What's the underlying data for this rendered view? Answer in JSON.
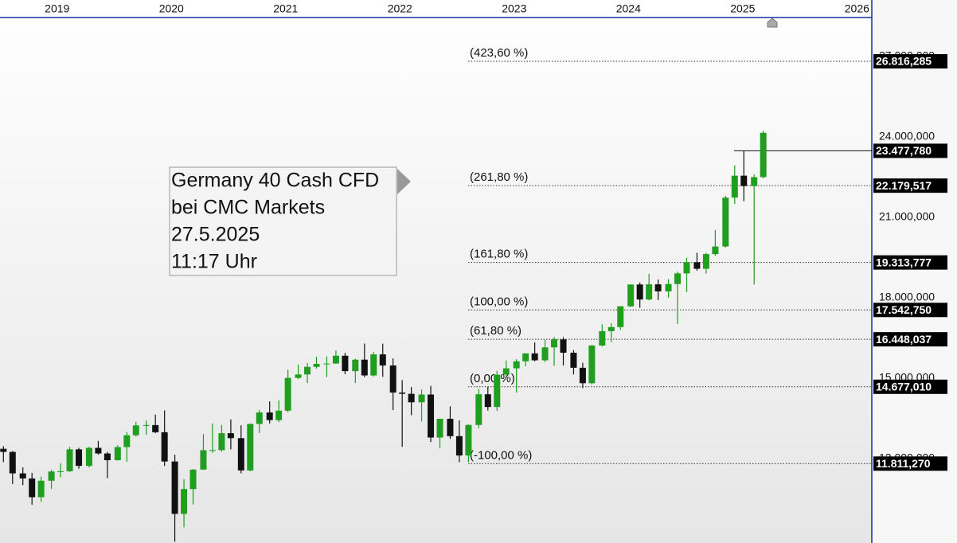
{
  "chart_data": {
    "type": "candlestick",
    "x": [
      2018.53,
      2018.61,
      2018.7,
      2018.78,
      2018.86,
      2018.95,
      2019.03,
      2019.11,
      2019.19,
      2019.28,
      2019.36,
      2019.44,
      2019.53,
      2019.61,
      2019.69,
      2019.78,
      2019.86,
      2019.94,
      2020.03,
      2020.11,
      2020.19,
      2020.28,
      2020.36,
      2020.44,
      2020.52,
      2020.61,
      2020.69,
      2020.77,
      2020.86,
      2020.94,
      2021.02,
      2021.11,
      2021.19,
      2021.27,
      2021.36,
      2021.44,
      2021.52,
      2021.61,
      2021.69,
      2021.77,
      2021.85,
      2021.94,
      2022.02,
      2022.1,
      2022.19,
      2022.27,
      2022.35,
      2022.44,
      2022.52,
      2022.6,
      2022.69,
      2022.77,
      2022.85,
      2022.93,
      2023.02,
      2023.1,
      2023.18,
      2023.27,
      2023.35,
      2023.43,
      2023.52,
      2023.6,
      2023.68,
      2023.77,
      2023.85,
      2023.93,
      2024.02,
      2024.1,
      2024.18,
      2024.26,
      2024.35,
      2024.43,
      2024.51,
      2024.6,
      2024.68,
      2024.76,
      2024.85,
      2024.93,
      2025.01,
      2025.1,
      2025.18
    ],
    "open": [
      12364,
      12247,
      11447,
      11257,
      10559,
      11173,
      11516,
      11526,
      12344,
      11727,
      12399,
      12189,
      11939,
      12428,
      12867,
      13236,
      13249,
      12981,
      11890,
      9936,
      10862,
      11587,
      12311,
      12313,
      12945,
      12761,
      11556,
      13291,
      13719,
      13433,
      13786,
      15008,
      15136,
      15421,
      15531,
      15544,
      15835,
      15260,
      15689,
      15100,
      15885,
      15471,
      14461,
      14415,
      14098,
      14388,
      12784,
      13484,
      12835,
      12114,
      13253,
      14397,
      13923,
      15128,
      15365,
      15628,
      15922,
      15664,
      16147,
      16446,
      15947,
      15386,
      14810,
      16215,
      16751,
      16903,
      17678,
      18492,
      17932,
      18497,
      18235,
      18508,
      18906,
      19324,
      19078,
      19626,
      19909,
      21732,
      22551,
      22163,
      22497
    ],
    "high": [
      12460,
      12277,
      11670,
      11465,
      11325,
      11575,
      11823,
      12435,
      12400,
      12438,
      12656,
      12250,
      12494,
      12990,
      13374,
      13425,
      13640,
      13795,
      12141,
      11229,
      11608,
      12913,
      13314,
      13253,
      13460,
      13241,
      13308,
      13815,
      14132,
      14169,
      15311,
      15502,
      15568,
      15803,
      15810,
      16030,
      15939,
      15723,
      16290,
      15972,
      16285,
      15737,
      14925,
      14668,
      14575,
      14709,
      13392,
      13948,
      13424,
      13282,
      14597,
      14676,
      15270,
      15658,
      15706,
      15922,
      16331,
      16427,
      16529,
      16528,
      16043,
      15575,
      16242,
      17003,
      17049,
      17678,
      18492,
      18567,
      18892,
      18675,
      18691,
      18971,
      19491,
      19675,
      19674,
      20523,
      21800,
      22935,
      23476,
      22600,
      24220
    ],
    "low": [
      11865,
      11051,
      11009,
      10279,
      10387,
      10863,
      11299,
      11500,
      11620,
      11669,
      12150,
      11266,
      11924,
      11881,
      12820,
      12888,
      12947,
      11724,
      8900,
      9436,
      10291,
      11582,
      12221,
      12253,
      12340,
      11450,
      11522,
      12953,
      13310,
      13359,
      13723,
      14962,
      14817,
      15357,
      15035,
      15530,
      15146,
      14819,
      15035,
      15060,
      15048,
      13807,
      12439,
      13617,
      13381,
      12618,
      12391,
      12735,
      11863,
      11869,
      13131,
      13792,
      13776,
      15029,
      14458,
      15446,
      15629,
      15600,
      15456,
      15469,
      15138,
      14630,
      14769,
      16181,
      16345,
      16800,
      17644,
      17626,
      17901,
      17914,
      18002,
      17024,
      18209,
      19010,
      18897,
      19566,
      19870,
      21500,
      21600,
      18489,
      22450
    ],
    "close": [
      12247,
      11447,
      11257,
      10559,
      11173,
      11516,
      11526,
      12344,
      11727,
      12399,
      12189,
      11939,
      12428,
      12867,
      13236,
      13249,
      12981,
      11890,
      9936,
      10862,
      11587,
      12311,
      12313,
      12945,
      12761,
      11556,
      13291,
      13719,
      13433,
      13786,
      15008,
      15136,
      15421,
      15531,
      15544,
      15835,
      15260,
      15689,
      15100,
      15885,
      15471,
      14461,
      14415,
      14098,
      14388,
      12784,
      13484,
      12835,
      12114,
      13253,
      14397,
      13923,
      15128,
      15365,
      15628,
      15922,
      15664,
      16147,
      16446,
      15947,
      15386,
      14810,
      16215,
      16751,
      16903,
      17678,
      18492,
      17932,
      18497,
      18235,
      18508,
      18906,
      19324,
      19078,
      19626,
      19909,
      21732,
      22551,
      22163,
      22497,
      24150
    ],
    "up_color": "#1f9e1f",
    "down_color": "#111111",
    "xlim": [
      2018.5,
      2026.13
    ],
    "xticks": [
      2019,
      2020,
      2021,
      2022,
      2023,
      2024,
      2025,
      2026
    ],
    "ylim": [
      8850,
      28450
    ],
    "yticks": [
      {
        "value": 12000,
        "label": "12.000,000"
      },
      {
        "value": 15000,
        "label": "15.000,000"
      },
      {
        "value": 18000,
        "label": "18.000,000"
      },
      {
        "value": 21000,
        "label": "21.000,000"
      },
      {
        "value": 24000,
        "label": "24.000,000"
      },
      {
        "value": 27000,
        "label": "27.000,000"
      }
    ],
    "fib_levels": [
      {
        "label": "(423,60 %)",
        "value": 26816.285,
        "value_label": "26.816,285"
      },
      {
        "label": "(261,80 %)",
        "value": 22179.517,
        "value_label": "22.179,517"
      },
      {
        "label": "(161,80 %)",
        "value": 19313.777,
        "value_label": "19.313,777"
      },
      {
        "label": "(100,00 %)",
        "value": 17542.75,
        "value_label": "17.542,750"
      },
      {
        "label": "(61,80 %)",
        "value": 16448.037,
        "value_label": "16.448,037"
      },
      {
        "label": "(0,00 %)",
        "value": 14677.01,
        "value_label": "14.677,010"
      },
      {
        "label": "(-100,00 %)",
        "value": 11811.27,
        "value_label": "11.811,270"
      }
    ],
    "price_line": {
      "value": 23477.78,
      "value_label": "23.477,780"
    },
    "info_box": {
      "lines": [
        "Germany 40 Cash CFD",
        "bei CMC Markets",
        "27.5.2025",
        "11:17 Uhr"
      ]
    }
  }
}
